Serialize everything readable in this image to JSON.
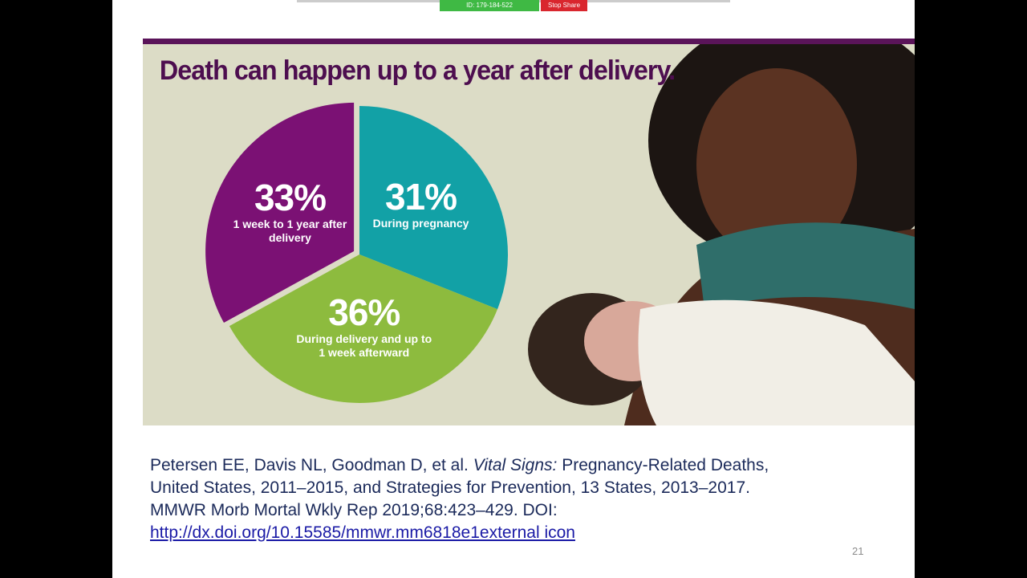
{
  "toolbar": {
    "meeting_id": "ID: 179-184-522",
    "stop_share": "Stop Share"
  },
  "chart_data": {
    "type": "pie",
    "title": "Death can happen up to a year after delivery.",
    "categories": [
      "During pregnancy",
      "During delivery and up to 1 week afterward",
      "1 week to 1 year after delivery"
    ],
    "values": [
      31,
      36,
      33
    ],
    "value_labels": [
      "31%",
      "36%",
      "33%"
    ],
    "colors": [
      "#12a1a6",
      "#8dbb3e",
      "#7b1174"
    ],
    "start_angle": 0,
    "direction": "clockwise"
  },
  "citation": {
    "authors": "Petersen EE, Davis NL, Goodman D, et al.",
    "journal": "Vital Signs:",
    "line1_rest": "Pregnancy-Related Deaths,",
    "line2": "United States, 2011–2015, and Strategies for Prevention, 13 States, 2013–2017.",
    "line3": "MMWR Morb Mortal Wkly Rep 2019;68:423–429. DOI:",
    "link": "http://dx.doi.org/10.15585/mmwr.mm6818e1external icon"
  },
  "slide_number": "21"
}
